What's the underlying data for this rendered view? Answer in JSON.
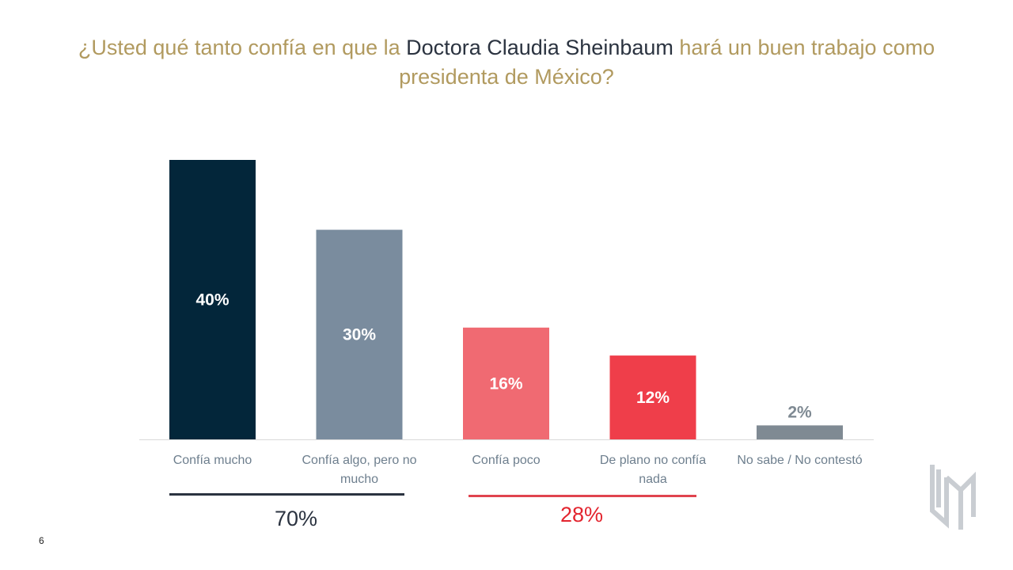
{
  "header": {
    "title_part1": "¿Usted qué tanto confía en que la ",
    "title_highlight": "Doctora Claudia Sheinbaum",
    "title_part2": " hará un buen trabajo como presidenta de México?"
  },
  "chart_data": {
    "type": "bar",
    "title": "¿Usted qué tanto confía en que la Doctora Claudia Sheinbaum hará un buen trabajo como presidenta de México?",
    "xlabel": "",
    "ylabel": "",
    "ylim": [
      0,
      40
    ],
    "grid": false,
    "categories": [
      [
        "Confía mucho"
      ],
      [
        "Confía algo, pero no",
        "mucho"
      ],
      [
        "Confía poco"
      ],
      [
        "De plano no confía",
        "nada"
      ],
      [
        "No sabe / No contestó"
      ]
    ],
    "values": [
      40,
      30,
      16,
      12,
      2
    ],
    "data_labels": [
      "40%",
      "30%",
      "16%",
      "12%",
      "2%"
    ],
    "colors": [
      "#03263a",
      "#7a8c9e",
      "#f06a72",
      "#ef3e4a",
      "#7f8a93"
    ]
  },
  "groups": [
    {
      "label": "70%",
      "color": "#2b3340",
      "text_color": "#2b3340"
    },
    {
      "label": "28%",
      "color": "#e0434e",
      "text_color": "#e3242e"
    }
  ],
  "footer": {
    "page_number": "6"
  }
}
